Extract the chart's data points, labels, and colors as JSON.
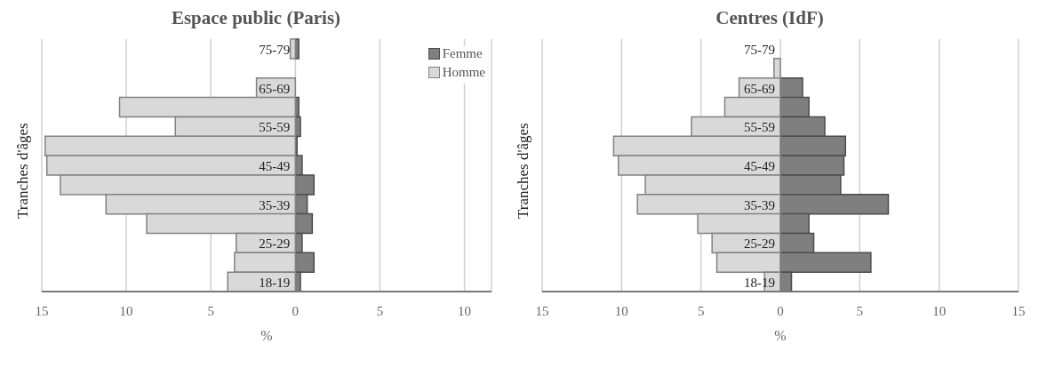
{
  "chart_data": [
    {
      "type": "bar",
      "orientation": "horizontal",
      "stacked": true,
      "title": "Espace public (Paris)",
      "xlabel": "%",
      "ylabel": "Tranches d'âges",
      "categories": [
        "75-79",
        null,
        "65-69",
        null,
        "55-59",
        null,
        "45-49",
        null,
        "35-39",
        null,
        "25-29",
        null,
        "18-19"
      ],
      "series": [
        {
          "name": "Femme",
          "color": "#7f7f7f",
          "values": [
            0.2,
            0,
            0,
            0.2,
            0.3,
            0.1,
            0.4,
            1.1,
            0.7,
            1.0,
            0.4,
            1.1,
            0.3
          ]
        },
        {
          "name": "Homme",
          "color": "#d9d9d9",
          "values": [
            -0.3,
            0,
            -2.3,
            -10.4,
            -7.1,
            -14.8,
            -14.7,
            -13.9,
            -11.2,
            -8.8,
            -3.5,
            -3.6,
            -4.0
          ]
        }
      ],
      "xlim": [
        -15,
        11.6
      ],
      "xticks": [
        {
          "value": -15,
          "label": "15"
        },
        {
          "value": -10,
          "label": "10"
        },
        {
          "value": -5,
          "label": "5"
        },
        0,
        5,
        10
      ],
      "grid": "x",
      "legend": "top right"
    },
    {
      "type": "bar",
      "orientation": "horizontal",
      "stacked": true,
      "title": "Centres (IdF)",
      "xlabel": "%",
      "ylabel": "Tranches d'âges",
      "categories": [
        "75-79",
        null,
        "65-69",
        null,
        "55-59",
        null,
        "45-49",
        null,
        "35-39",
        null,
        "25-29",
        null,
        "18-19"
      ],
      "series": [
        {
          "color": "#7f7f7f",
          "values": [
            0,
            0,
            1.4,
            1.8,
            2.8,
            4.1,
            4.0,
            3.8,
            6.8,
            1.8,
            2.1,
            5.7,
            0.7
          ]
        },
        {
          "color": "#d9d9d9",
          "values": [
            0,
            -0.4,
            -2.6,
            -3.5,
            -5.6,
            -10.5,
            -10.2,
            -8.5,
            -9.0,
            -5.2,
            -4.3,
            -4.0,
            -1.0
          ]
        }
      ],
      "xlim": [
        -15,
        15
      ],
      "xticks": [
        {
          "value": -15,
          "label": "15"
        },
        {
          "value": -10,
          "label": "10"
        },
        {
          "value": -5,
          "label": "5"
        },
        0,
        5,
        10,
        15
      ],
      "grid": "x",
      "legend": false
    }
  ]
}
